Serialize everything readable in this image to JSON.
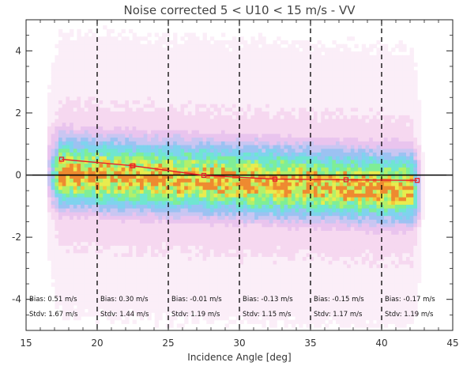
{
  "chart_data": {
    "type": "scatter",
    "title": "Noise corrected 5 < U10 < 15 m/s - VV",
    "xlabel": "Incidence Angle [deg]",
    "ylabel": "",
    "xlim": [
      15,
      45
    ],
    "ylim": [
      -5,
      5
    ],
    "xticks": [
      "15",
      "20",
      "25",
      "30",
      "35",
      "40",
      "45"
    ],
    "yticks": [
      "-4",
      "-2",
      "0",
      "2",
      "4"
    ],
    "ytick_values": [
      -4,
      -2,
      0,
      2,
      4
    ],
    "xtick_values": [
      15,
      20,
      25,
      30,
      35,
      40,
      45
    ],
    "bin_boundaries": [
      20,
      25,
      30,
      35,
      40
    ],
    "reference_line": 0,
    "density": {
      "x_range": [
        16.5,
        42.5
      ],
      "description_levels": [
        "pink",
        "blue",
        "cyan",
        "green",
        "yellow",
        "orange"
      ]
    },
    "series": [
      {
        "values": [
          {
            "x": 17.5,
            "y": 0.51
          },
          {
            "x": 22.5,
            "y": 0.3
          },
          {
            "x": 27.5,
            "y": -0.01
          },
          {
            "x": 32.5,
            "y": -0.13
          },
          {
            "x": 37.5,
            "y": -0.15
          },
          {
            "x": 42.5,
            "y": -0.17
          }
        ],
        "color": "#e8202a"
      }
    ],
    "annotations": [
      {
        "bias": "Bias:  0.51 m/s",
        "stdv": "Stdv:  1.67 m/s"
      },
      {
        "bias": "Bias:  0.30 m/s",
        "stdv": "Stdv:  1.44 m/s"
      },
      {
        "bias": "Bias:  -0.01 m/s",
        "stdv": "Stdv:  1.19 m/s"
      },
      {
        "bias": "Bias:  -0.13 m/s",
        "stdv": "Stdv:  1.15 m/s"
      },
      {
        "bias": "Bias:  -0.15 m/s",
        "stdv": "Stdv:  1.17 m/s"
      },
      {
        "bias": "Bias:  -0.17 m/s",
        "stdv": "Stdv:  1.19 m/s"
      }
    ]
  }
}
